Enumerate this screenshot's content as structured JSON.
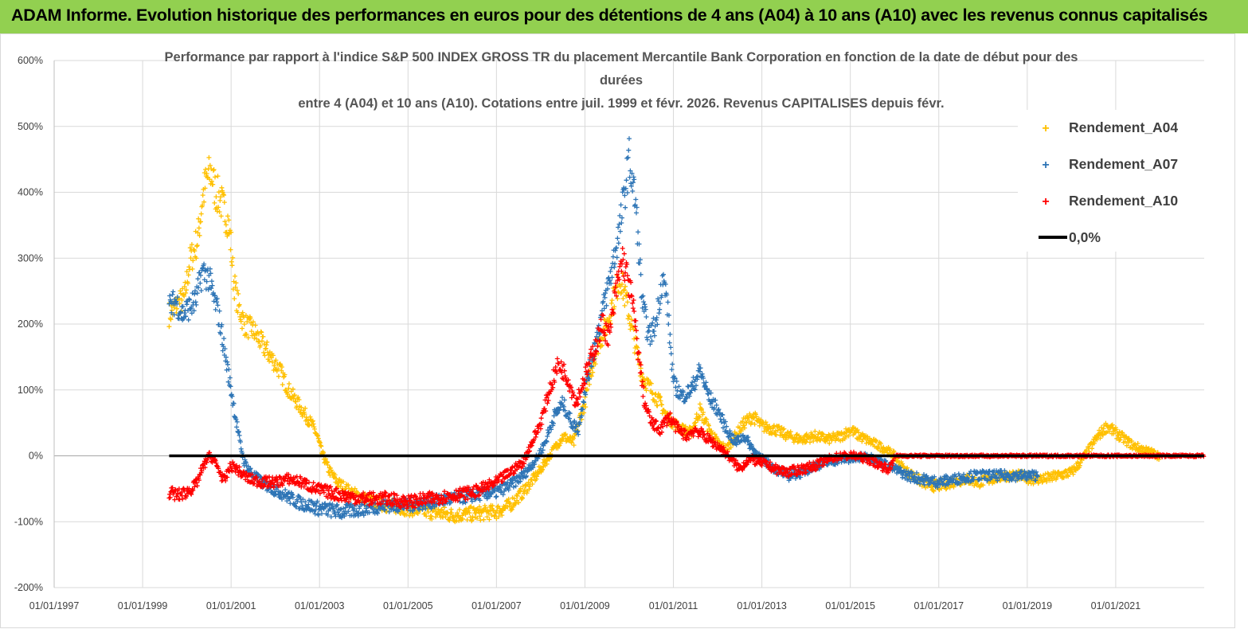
{
  "header": {
    "title": "ADAM Informe. Evolution historique des performances en euros pour des détentions de 4 ans (A04) à 10 ans (A10) avec les revenus connus capitalisés"
  },
  "colors": {
    "banner": "#92d050",
    "A04": "#ffc000",
    "A07": "#2e75b6",
    "A10": "#ff0000",
    "zero": "#000000",
    "grid": "#d9d9d9"
  },
  "chart_data": {
    "type": "scatter",
    "title_lines": [
      "Performance par rapport à l'indice S&P 500 INDEX GROSS TR  du placement Mercantile Bank Corporation en fonction de la date de début pour des",
      "durées",
      "entre 4 (A04) et 10 ans (A10). Cotations entre juil. 1999 et févr. 2026. Revenus CAPITALISES depuis févr."
    ],
    "x_ticks": [
      "01/01/1997",
      "01/01/1999",
      "01/01/2001",
      "01/01/2003",
      "01/01/2005",
      "01/01/2007",
      "01/01/2009",
      "01/01/2011",
      "01/01/2013",
      "01/01/2015",
      "01/01/2017",
      "01/01/2019",
      "01/01/2021"
    ],
    "xlim": [
      1997.0,
      2023.0
    ],
    "y_ticks": [
      "600%",
      "500%",
      "400%",
      "300%",
      "200%",
      "100%",
      "0%",
      "-100%",
      "-200%"
    ],
    "ylim": [
      -200,
      600
    ],
    "legend": [
      "Rendement_A04",
      "Rendement_A07",
      "Rendement_A10",
      "0,0%"
    ],
    "legend_position": "top-right",
    "series": [
      {
        "name": "Rendement_A04",
        "color": "#ffc000",
        "x_end": 2022.0,
        "points": [
          [
            1999.6,
            215
          ],
          [
            1999.8,
            230
          ],
          [
            1999.95,
            240
          ],
          [
            2000.05,
            290
          ],
          [
            2000.15,
            310
          ],
          [
            2000.25,
            330
          ],
          [
            2000.35,
            390
          ],
          [
            2000.45,
            420
          ],
          [
            2000.55,
            430
          ],
          [
            2000.65,
            400
          ],
          [
            2000.75,
            390
          ],
          [
            2000.85,
            370
          ],
          [
            2000.92,
            360
          ],
          [
            2001.0,
            320
          ],
          [
            2001.05,
            270
          ],
          [
            2001.15,
            230
          ],
          [
            2001.3,
            200
          ],
          [
            2001.5,
            190
          ],
          [
            2001.7,
            170
          ],
          [
            2001.9,
            150
          ],
          [
            2002.1,
            130
          ],
          [
            2002.3,
            100
          ],
          [
            2002.5,
            80
          ],
          [
            2002.7,
            60
          ],
          [
            2002.85,
            45
          ],
          [
            2002.95,
            30
          ],
          [
            2003.05,
            5
          ],
          [
            2003.2,
            -20
          ],
          [
            2003.4,
            -40
          ],
          [
            2003.7,
            -55
          ],
          [
            2004.0,
            -65
          ],
          [
            2004.5,
            -75
          ],
          [
            2005.0,
            -80
          ],
          [
            2005.5,
            -85
          ],
          [
            2006.0,
            -90
          ],
          [
            2006.5,
            -88
          ],
          [
            2007.0,
            -85
          ],
          [
            2007.3,
            -75
          ],
          [
            2007.6,
            -55
          ],
          [
            2007.9,
            -30
          ],
          [
            2008.2,
            0
          ],
          [
            2008.5,
            30
          ],
          [
            2008.75,
            20
          ],
          [
            2008.9,
            60
          ],
          [
            2009.0,
            80
          ],
          [
            2009.1,
            120
          ],
          [
            2009.3,
            170
          ],
          [
            2009.5,
            200
          ],
          [
            2009.65,
            240
          ],
          [
            2009.8,
            270
          ],
          [
            2009.95,
            230
          ],
          [
            2010.1,
            180
          ],
          [
            2010.3,
            120
          ],
          [
            2010.5,
            100
          ],
          [
            2010.7,
            80
          ],
          [
            2010.85,
            60
          ],
          [
            2011.0,
            50
          ],
          [
            2011.2,
            40
          ],
          [
            2011.4,
            35
          ],
          [
            2011.6,
            70
          ],
          [
            2011.8,
            40
          ],
          [
            2012.0,
            20
          ],
          [
            2012.2,
            10
          ],
          [
            2012.4,
            30
          ],
          [
            2012.6,
            50
          ],
          [
            2012.8,
            60
          ],
          [
            2013.0,
            45
          ],
          [
            2013.3,
            40
          ],
          [
            2013.6,
            30
          ],
          [
            2013.9,
            25
          ],
          [
            2014.2,
            30
          ],
          [
            2014.5,
            25
          ],
          [
            2014.8,
            30
          ],
          [
            2015.0,
            40
          ],
          [
            2015.2,
            30
          ],
          [
            2015.5,
            20
          ],
          [
            2015.8,
            10
          ],
          [
            2016.0,
            0
          ],
          [
            2016.2,
            -20
          ],
          [
            2016.5,
            -35
          ],
          [
            2016.8,
            -45
          ],
          [
            2017.0,
            -45
          ],
          [
            2017.3,
            -40
          ],
          [
            2017.6,
            -35
          ],
          [
            2017.9,
            -40
          ],
          [
            2018.2,
            -35
          ],
          [
            2018.5,
            -30
          ],
          [
            2018.8,
            -30
          ],
          [
            2019.1,
            -35
          ],
          [
            2019.4,
            -35
          ],
          [
            2019.7,
            -30
          ],
          [
            2020.0,
            -25
          ],
          [
            2020.2,
            -10
          ],
          [
            2020.4,
            10
          ],
          [
            2020.6,
            30
          ],
          [
            2020.8,
            45
          ],
          [
            2021.0,
            35
          ],
          [
            2021.2,
            25
          ],
          [
            2021.4,
            15
          ],
          [
            2021.6,
            10
          ],
          [
            2021.8,
            5
          ],
          [
            2022.0,
            0
          ]
        ]
      },
      {
        "name": "Rendement_A07",
        "color": "#2e75b6",
        "x_end": 2019.25,
        "points": [
          [
            1999.6,
            225
          ],
          [
            1999.75,
            235
          ],
          [
            1999.9,
            215
          ],
          [
            2000.05,
            225
          ],
          [
            2000.2,
            235
          ],
          [
            2000.35,
            280
          ],
          [
            2000.5,
            270
          ],
          [
            2000.6,
            240
          ],
          [
            2000.7,
            220
          ],
          [
            2000.8,
            180
          ],
          [
            2000.9,
            140
          ],
          [
            2001.0,
            100
          ],
          [
            2001.1,
            60
          ],
          [
            2001.2,
            20
          ],
          [
            2001.3,
            -10
          ],
          [
            2001.5,
            -30
          ],
          [
            2001.8,
            -45
          ],
          [
            2002.1,
            -55
          ],
          [
            2002.5,
            -70
          ],
          [
            2003.0,
            -80
          ],
          [
            2003.5,
            -85
          ],
          [
            2004.0,
            -80
          ],
          [
            2004.5,
            -75
          ],
          [
            2005.0,
            -75
          ],
          [
            2005.5,
            -70
          ],
          [
            2006.0,
            -65
          ],
          [
            2006.5,
            -60
          ],
          [
            2007.0,
            -55
          ],
          [
            2007.3,
            -45
          ],
          [
            2007.6,
            -30
          ],
          [
            2007.9,
            -5
          ],
          [
            2008.1,
            20
          ],
          [
            2008.3,
            60
          ],
          [
            2008.5,
            80
          ],
          [
            2008.7,
            50
          ],
          [
            2008.85,
            40
          ],
          [
            2009.0,
            100
          ],
          [
            2009.2,
            160
          ],
          [
            2009.4,
            220
          ],
          [
            2009.6,
            280
          ],
          [
            2009.8,
            350
          ],
          [
            2010.0,
            450
          ],
          [
            2010.15,
            380
          ],
          [
            2010.3,
            230
          ],
          [
            2010.45,
            180
          ],
          [
            2010.6,
            200
          ],
          [
            2010.75,
            270
          ],
          [
            2010.85,
            240
          ],
          [
            2011.0,
            110
          ],
          [
            2011.2,
            90
          ],
          [
            2011.4,
            100
          ],
          [
            2011.6,
            130
          ],
          [
            2011.8,
            90
          ],
          [
            2012.0,
            70
          ],
          [
            2012.2,
            40
          ],
          [
            2012.4,
            20
          ],
          [
            2012.6,
            30
          ],
          [
            2012.8,
            10
          ],
          [
            2013.0,
            -5
          ],
          [
            2013.3,
            -20
          ],
          [
            2013.6,
            -30
          ],
          [
            2013.9,
            -25
          ],
          [
            2014.2,
            -15
          ],
          [
            2014.5,
            -10
          ],
          [
            2014.8,
            -5
          ],
          [
            2015.1,
            -5
          ],
          [
            2015.4,
            0
          ],
          [
            2015.7,
            -10
          ],
          [
            2016.0,
            -20
          ],
          [
            2016.3,
            -30
          ],
          [
            2016.6,
            -35
          ],
          [
            2017.0,
            -40
          ],
          [
            2017.4,
            -35
          ],
          [
            2017.8,
            -30
          ],
          [
            2018.2,
            -30
          ],
          [
            2018.6,
            -30
          ],
          [
            2019.0,
            -30
          ],
          [
            2019.25,
            -30
          ]
        ]
      },
      {
        "name": "Rendement_A10",
        "color": "#ff0000",
        "x_end": 2023.0,
        "points": [
          [
            1999.6,
            -55
          ],
          [
            1999.8,
            -60
          ],
          [
            2000.0,
            -55
          ],
          [
            2000.2,
            -45
          ],
          [
            2000.35,
            -20
          ],
          [
            2000.5,
            0
          ],
          [
            2000.6,
            -5
          ],
          [
            2000.75,
            -25
          ],
          [
            2000.85,
            -40
          ],
          [
            2000.95,
            -20
          ],
          [
            2001.05,
            -15
          ],
          [
            2001.2,
            -25
          ],
          [
            2001.4,
            -35
          ],
          [
            2001.7,
            -40
          ],
          [
            2002.0,
            -40
          ],
          [
            2002.3,
            -35
          ],
          [
            2002.6,
            -40
          ],
          [
            2002.9,
            -50
          ],
          [
            2003.2,
            -55
          ],
          [
            2003.5,
            -60
          ],
          [
            2004.0,
            -65
          ],
          [
            2004.5,
            -65
          ],
          [
            2005.0,
            -70
          ],
          [
            2005.5,
            -65
          ],
          [
            2006.0,
            -60
          ],
          [
            2006.5,
            -55
          ],
          [
            2007.0,
            -40
          ],
          [
            2007.3,
            -25
          ],
          [
            2007.6,
            -10
          ],
          [
            2007.8,
            20
          ],
          [
            2008.0,
            50
          ],
          [
            2008.2,
            100
          ],
          [
            2008.4,
            140
          ],
          [
            2008.6,
            120
          ],
          [
            2008.8,
            80
          ],
          [
            2009.0,
            120
          ],
          [
            2009.2,
            160
          ],
          [
            2009.4,
            200
          ],
          [
            2009.55,
            180
          ],
          [
            2009.7,
            250
          ],
          [
            2009.85,
            300
          ],
          [
            2010.0,
            260
          ],
          [
            2010.1,
            220
          ],
          [
            2010.2,
            160
          ],
          [
            2010.35,
            80
          ],
          [
            2010.5,
            50
          ],
          [
            2010.7,
            40
          ],
          [
            2010.9,
            60
          ],
          [
            2011.1,
            40
          ],
          [
            2011.3,
            30
          ],
          [
            2011.5,
            40
          ],
          [
            2011.7,
            30
          ],
          [
            2011.9,
            20
          ],
          [
            2012.1,
            10
          ],
          [
            2012.3,
            -5
          ],
          [
            2012.5,
            -20
          ],
          [
            2012.7,
            -5
          ],
          [
            2013.0,
            -10
          ],
          [
            2013.3,
            -20
          ],
          [
            2013.6,
            -25
          ],
          [
            2013.9,
            -20
          ],
          [
            2014.2,
            -15
          ],
          [
            2014.5,
            -5
          ],
          [
            2014.8,
            0
          ],
          [
            2015.1,
            0
          ],
          [
            2015.4,
            -5
          ],
          [
            2015.7,
            -15
          ],
          [
            2015.9,
            -20
          ],
          [
            2016.0,
            0
          ],
          [
            2023.0,
            0
          ]
        ]
      }
    ],
    "zero_line": {
      "label": "0,0%",
      "value": 0,
      "x_start": 1999.6,
      "x_end": 2023.0
    }
  }
}
